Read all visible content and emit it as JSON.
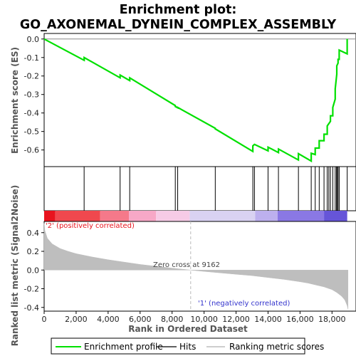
{
  "chart_data": {
    "type": "line",
    "title_line1": "Enrichment plot:",
    "title_line2": "GO_AXONEMAL_DYNEIN_COMPLEX_ASSEMBLY",
    "es_ylabel": "Enrichment score (ES)",
    "metric_ylabel": "Ranked list metric (Signal2Noise)",
    "xlabel": "Rank in Ordered Dataset",
    "xlim": [
      0,
      19500
    ],
    "xticks": [
      0,
      2000,
      4000,
      6000,
      8000,
      10000,
      12000,
      14000,
      16000,
      18000
    ],
    "xtick_labels": [
      "0",
      "2,000",
      "4,000",
      "6,000",
      "8,000",
      "10,000",
      "12,000",
      "14,000",
      "16,000",
      "18,000"
    ],
    "es_ylim": [
      -0.69,
      0.03
    ],
    "es_yticks": [
      0.0,
      -0.1,
      -0.2,
      -0.3,
      -0.4,
      -0.5,
      -0.6
    ],
    "es_ytick_labels": [
      "0.0",
      "-0.1",
      "-0.2",
      "-0.3",
      "-0.4",
      "-0.5",
      "-0.6"
    ],
    "metric_ylim": [
      -0.44,
      0.52
    ],
    "metric_yticks": [
      0.4,
      0.2,
      0.0,
      -0.2,
      -0.4
    ],
    "metric_ytick_labels": [
      "0.4",
      "0.2",
      "0.0",
      "-0.2",
      "-0.4"
    ],
    "series": [
      {
        "name": "Enrichment profile",
        "color": "#00e000",
        "x": [
          0,
          2500,
          2500,
          4750,
          4750,
          5350,
          5350,
          8200,
          8200,
          8350,
          8350,
          10700,
          10700,
          13050,
          13050,
          13150,
          13150,
          14000,
          14000,
          14650,
          14650,
          15900,
          15900,
          16700,
          16700,
          16950,
          16950,
          17200,
          17200,
          17500,
          17500,
          17700,
          17700,
          17900,
          17900,
          18050,
          18050,
          18200,
          18200,
          18300,
          18300,
          18380,
          18380,
          18450,
          18450,
          18950,
          18950
        ],
        "y": [
          0.0,
          -0.115,
          -0.1,
          -0.21,
          -0.195,
          -0.225,
          -0.21,
          -0.36,
          -0.365,
          -0.372,
          -0.37,
          -0.483,
          -0.486,
          -0.608,
          -0.578,
          -0.57,
          -0.57,
          -0.605,
          -0.585,
          -0.614,
          -0.595,
          -0.654,
          -0.62,
          -0.66,
          -0.618,
          -0.625,
          -0.59,
          -0.59,
          -0.55,
          -0.55,
          -0.515,
          -0.515,
          -0.47,
          -0.445,
          -0.415,
          -0.415,
          -0.37,
          -0.325,
          -0.27,
          -0.19,
          -0.145,
          -0.13,
          -0.11,
          -0.11,
          -0.06,
          -0.08,
          0.0
        ]
      },
      {
        "name": "Hits",
        "color": "#000000",
        "x": [
          2500,
          4750,
          5350,
          8200,
          8350,
          10700,
          13050,
          13150,
          14000,
          14650,
          15900,
          16700,
          16950,
          17200,
          17500,
          17700,
          17800,
          17900,
          18050,
          18200,
          18280,
          18330,
          18380,
          18450,
          18950
        ]
      },
      {
        "name": "Ranking metric scores",
        "color": "#bebebe",
        "x": [
          0,
          50,
          200,
          500,
          1000,
          1500,
          2000,
          3000,
          4000,
          5000,
          6000,
          7000,
          8000,
          9162,
          10000,
          11000,
          12000,
          13000,
          14000,
          15000,
          16000,
          16500,
          17000,
          17500,
          18000,
          18300,
          18600,
          18800,
          18950,
          19000
        ],
        "y": [
          0.5,
          0.42,
          0.34,
          0.28,
          0.23,
          0.2,
          0.175,
          0.14,
          0.11,
          0.085,
          0.06,
          0.04,
          0.02,
          0.0,
          -0.015,
          -0.03,
          -0.045,
          -0.06,
          -0.08,
          -0.1,
          -0.125,
          -0.14,
          -0.16,
          -0.18,
          -0.21,
          -0.24,
          -0.28,
          -0.32,
          -0.38,
          -0.42
        ]
      }
    ],
    "colorbar_colors": [
      "#e8141e",
      "#f0484e",
      "#f5798a",
      "#f7a8c7",
      "#f6cbe6",
      "#d9d2f2",
      "#bdb0ee",
      "#8a78e4",
      "#6655d8",
      "#4833c2"
    ],
    "colorbar_edges": [
      0,
      700,
      3500,
      5300,
      7000,
      9100,
      13200,
      14600,
      17500,
      18950
    ],
    "annotation_pos": "'2' (positively correlated)",
    "annotation_neg": "'1' (negatively correlated)",
    "annotation_pos_color": "#e8141e",
    "annotation_neg_color": "#3333cc",
    "zero_cross_label": "Zero cross at 9162",
    "zero_cross": 9162,
    "legend_placement": "bottom"
  }
}
